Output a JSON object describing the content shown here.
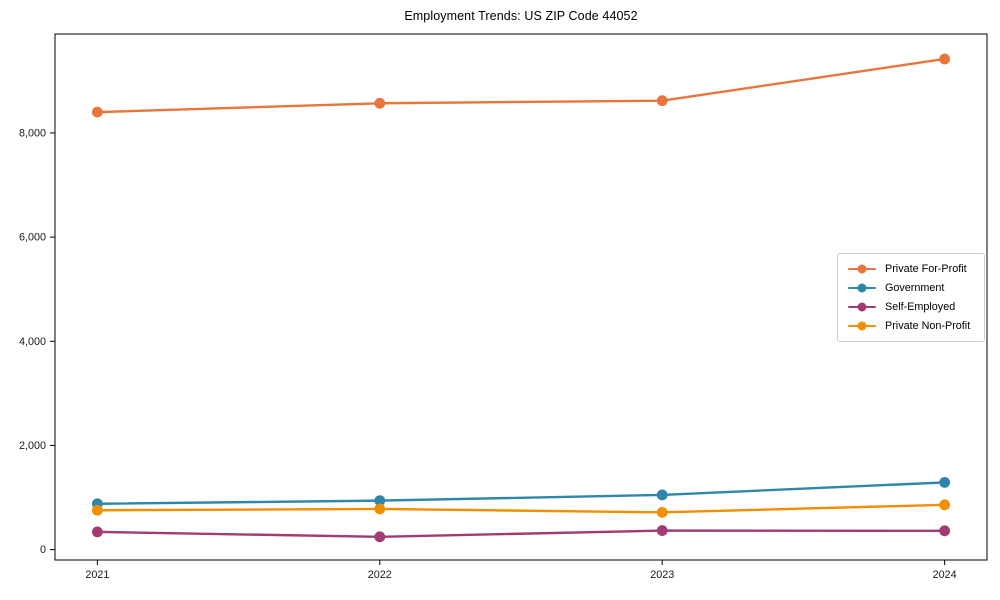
{
  "figure": {
    "background": "#ffffff",
    "axis_color": "#000000",
    "tick_label_color": "#1a1a1a",
    "legend_border_color": "#cccccc"
  },
  "chart_data": {
    "type": "line",
    "title": "Employment Trends: US ZIP Code 44052",
    "xlabel": "",
    "ylabel": "",
    "grid": false,
    "legend_position": "center-right",
    "x": [
      2021,
      2022,
      2023,
      2024
    ],
    "x_tick_labels": [
      "2021",
      "2022",
      "2023",
      "2024"
    ],
    "xlim": [
      2020.85,
      2024.15
    ],
    "y_ticks": [
      0,
      2000,
      4000,
      6000,
      8000
    ],
    "y_tick_labels": [
      "0",
      "2,000",
      "4,000",
      "6,000",
      "8,000"
    ],
    "ylim": [
      -200,
      9900
    ],
    "series": [
      {
        "name": "Private For-Profit",
        "color": "#E8763C",
        "values": [
          8400,
          8570,
          8620,
          9420
        ]
      },
      {
        "name": "Government",
        "color": "#2E86AB",
        "values": [
          880,
          940,
          1050,
          1290
        ]
      },
      {
        "name": "Self-Employed",
        "color": "#A23B72",
        "values": [
          340,
          245,
          365,
          360
        ]
      },
      {
        "name": "Private Non-Profit",
        "color": "#F18F01",
        "values": [
          755,
          780,
          715,
          860
        ]
      }
    ]
  }
}
